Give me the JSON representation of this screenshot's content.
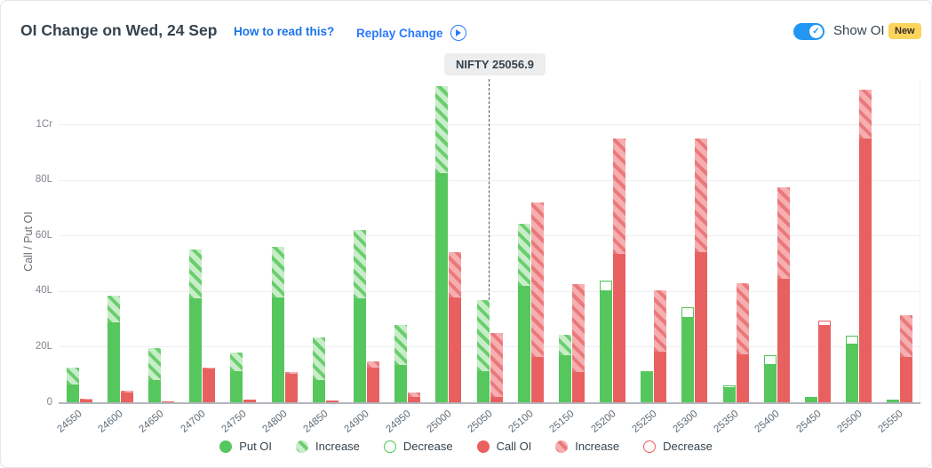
{
  "header": {
    "title": "OI Change on Wed, 24 Sep",
    "how_to_read_label": "How to read this?",
    "replay_label": "Replay Change",
    "show_oi_label": "Show OI",
    "new_badge": "New",
    "toggle_state": "on"
  },
  "marker": {
    "label": "NIFTY 25056.9",
    "value": 25056.9
  },
  "colors": {
    "put_solid": "#55c75c",
    "put_hatch_stripe": "#6bce6e",
    "put_hatch_bg": "#c8edc9",
    "call_solid": "#e96060",
    "call_hatch_stripe": "#ea797b",
    "call_hatch_bg": "#f6aeb0",
    "link_blue": "#1a73e8",
    "replay_blue": "#2979ff",
    "toggle_blue": "#2196f3",
    "new_badge_bg": "#fcd45c",
    "marker_bg": "#ededed",
    "title_text": "#36434d"
  },
  "chart_data": {
    "type": "bar",
    "title": "OI Change on Wed, 24 Sep",
    "ylabel": "Call / Put OI",
    "unit": "lakh (L); 1Cr = 100L",
    "ylim": [
      0,
      116.5
    ],
    "grid": "horizontal",
    "legend_position": "bottom",
    "y_ticks": [
      {
        "value": 0,
        "label": "0"
      },
      {
        "value": 20,
        "label": "20L"
      },
      {
        "value": 40,
        "label": "40L"
      },
      {
        "value": 60,
        "label": "60L"
      },
      {
        "value": 80,
        "label": "80L"
      },
      {
        "value": 100,
        "label": "1Cr"
      }
    ],
    "categories": [
      24550,
      24600,
      24650,
      24700,
      24750,
      24800,
      24850,
      24900,
      24950,
      25000,
      25050,
      25100,
      25150,
      25200,
      25250,
      25300,
      25350,
      25400,
      25450,
      25500,
      25550
    ],
    "series": [
      {
        "name": "Put OI",
        "color_key": "green",
        "solid": [
          6.5,
          29,
          8,
          37.5,
          11.5,
          38,
          8,
          37.5,
          13.5,
          82.5,
          11.5,
          42,
          17,
          40,
          11.5,
          30.5,
          5.2,
          13.5,
          2,
          21,
          1
        ],
        "total": [
          12.5,
          38.5,
          19.5,
          55,
          18,
          56,
          23.5,
          62,
          28,
          114,
          37,
          64.5,
          24.5,
          44,
          11.5,
          34.5,
          6.3,
          17,
          2,
          24,
          1
        ],
        "change": [
          "increase",
          "increase",
          "increase",
          "increase",
          "increase",
          "increase",
          "increase",
          "increase",
          "increase",
          "increase",
          "increase",
          "increase",
          "increase",
          "decrease",
          "none",
          "decrease",
          "decrease",
          "decrease",
          "none",
          "decrease",
          "none"
        ]
      },
      {
        "name": "Call OI",
        "color_key": "red",
        "solid": [
          1,
          3.8,
          0.6,
          12.2,
          1.2,
          10.5,
          0.9,
          12.5,
          2,
          38,
          2,
          16.5,
          11,
          53.5,
          18.5,
          54,
          17.5,
          44.5,
          27.5,
          95,
          16.5
        ],
        "total": [
          1.4,
          4.3,
          0.6,
          12.7,
          1.2,
          11,
          0.9,
          14.8,
          3.8,
          54,
          25,
          72,
          42.5,
          95,
          40.5,
          95,
          43,
          77.5,
          29.5,
          112.5,
          31.5
        ],
        "change": [
          "increase",
          "increase",
          "none",
          "increase",
          "none",
          "increase",
          "none",
          "increase",
          "increase",
          "increase",
          "increase",
          "increase",
          "increase",
          "increase",
          "increase",
          "increase",
          "increase",
          "increase",
          "decrease",
          "increase",
          "increase"
        ]
      }
    ],
    "legend": [
      {
        "label": "Put OI",
        "style": "solid",
        "color_key": "green"
      },
      {
        "label": "Increase",
        "style": "hatch",
        "color_key": "green"
      },
      {
        "label": "Decrease",
        "style": "outline",
        "color_key": "green"
      },
      {
        "label": "Call OI",
        "style": "solid",
        "color_key": "red"
      },
      {
        "label": "Increase",
        "style": "hatch",
        "color_key": "red"
      },
      {
        "label": "Decrease",
        "style": "outline",
        "color_key": "red"
      }
    ]
  }
}
